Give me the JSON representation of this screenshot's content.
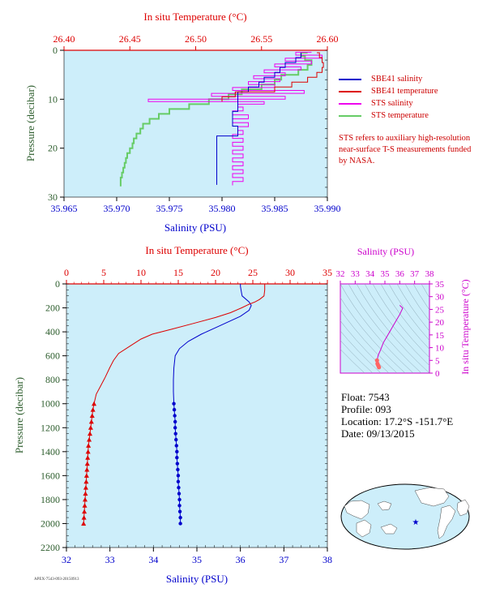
{
  "float_info": {
    "float": "Float:  7543",
    "profile": "Profile:  093",
    "location": "Location:  17.2°S  -151.7°E",
    "date": "Date:  09/13/2015"
  },
  "note": "STS refers to auxiliary high-resolution near-surface T-S measurements funded by NASA.",
  "footer_code": "APEX-7543-093-20150913",
  "colors": {
    "salinity": "#0000cc",
    "temperature": "#dd0000",
    "sts_salinity": "#ee00ee",
    "sts_temperature": "#66cc66",
    "plot_bg": "#cdeefa",
    "ts_axis": "#cc00cc",
    "pressure_axis": "#2e5e2e"
  },
  "chart_data": [
    {
      "type": "line",
      "title": "",
      "x_top_label": "In situ Temperature (°C)",
      "x_bottom_label": "Salinity (PSU)",
      "ylabel": "Pressure (decibar)",
      "top_ticks": [
        "26.40",
        "26.45",
        "26.50",
        "26.55",
        "26.60"
      ],
      "bottom_ticks": [
        "35.965",
        "35.970",
        "35.975",
        "35.980",
        "35.985",
        "35.990"
      ],
      "y_ticks": [
        "0",
        "10",
        "20",
        "30"
      ],
      "xlim_temperature": [
        26.4,
        26.6
      ],
      "xlim_salinity": [
        35.965,
        35.99
      ],
      "ylim": [
        30,
        0
      ],
      "legend": [
        {
          "name": "SBE41 salinity",
          "color": "#0000cc"
        },
        {
          "name": "SBE41 temperature",
          "color": "#dd0000"
        },
        {
          "name": "STS salinity",
          "color": "#ee00ee"
        },
        {
          "name": "STS temperature",
          "color": "#66cc66"
        }
      ],
      "series": [
        {
          "name": "SBE41 salinity",
          "axis": "salinity",
          "points": [
            [
              35.9875,
              0.5
            ],
            [
              35.9875,
              1.5
            ],
            [
              35.987,
              2.5
            ],
            [
              35.986,
              3.5
            ],
            [
              35.9855,
              4.5
            ],
            [
              35.985,
              5.5
            ],
            [
              35.984,
              6.5
            ],
            [
              35.9835,
              7.5
            ],
            [
              35.9825,
              8.5
            ],
            [
              35.9815,
              9.5
            ],
            [
              35.9815,
              10.5
            ],
            [
              35.9815,
              11.5
            ],
            [
              35.9815,
              12.5
            ],
            [
              35.981,
              14
            ],
            [
              35.981,
              15.5
            ],
            [
              35.9815,
              16.5
            ],
            [
              35.9815,
              17.5
            ],
            [
              35.9795,
              18.5
            ],
            [
              35.9795,
              19.5
            ],
            [
              35.9795,
              20.5
            ],
            [
              35.9795,
              21.5
            ],
            [
              35.9795,
              22.5
            ],
            [
              35.9795,
              23.5
            ],
            [
              35.9795,
              24.5
            ],
            [
              35.9795,
              25.5
            ],
            [
              35.9795,
              26.5
            ],
            [
              35.9795,
              27.5
            ]
          ]
        },
        {
          "name": "SBE41 temperature",
          "axis": "temperature",
          "points": [
            [
              26.592,
              0.5
            ],
            [
              26.594,
              1.5
            ],
            [
              26.596,
              2.5
            ],
            [
              26.597,
              3.5
            ],
            [
              26.596,
              4.5
            ],
            [
              26.592,
              5.5
            ],
            [
              26.585,
              6.5
            ],
            [
              26.573,
              7.5
            ],
            [
              26.56,
              8.5
            ],
            [
              26.53,
              9.5
            ],
            [
              26.52,
              10.5
            ]
          ]
        },
        {
          "name": "STS salinity",
          "axis": "salinity",
          "points": [
            [
              35.9885,
              0.4
            ],
            [
              35.987,
              1.0
            ],
            [
              35.9895,
              1.6
            ],
            [
              35.986,
              2.2
            ],
            [
              35.9885,
              2.8
            ],
            [
              35.985,
              3.4
            ],
            [
              35.9875,
              4.0
            ],
            [
              35.984,
              4.6
            ],
            [
              35.986,
              5.2
            ],
            [
              35.983,
              5.8
            ],
            [
              35.9855,
              6.4
            ],
            [
              35.9825,
              7.0
            ],
            [
              35.985,
              7.6
            ],
            [
              35.981,
              8.2
            ],
            [
              35.9878,
              8.8
            ],
            [
              35.979,
              9.4
            ],
            [
              35.986,
              10.0
            ],
            [
              35.973,
              10.5
            ],
            [
              35.984,
              11.0
            ],
            [
              35.9815,
              11.6
            ],
            [
              35.982,
              12.4
            ],
            [
              35.981,
              13.2
            ],
            [
              35.9825,
              14.0
            ],
            [
              35.981,
              14.8
            ],
            [
              35.9825,
              15.6
            ],
            [
              35.9815,
              16.4
            ],
            [
              35.982,
              17.2
            ],
            [
              35.981,
              18.0
            ],
            [
              35.982,
              18.8
            ],
            [
              35.981,
              19.6
            ],
            [
              35.982,
              20.4
            ],
            [
              35.981,
              21.2
            ],
            [
              35.982,
              22.0
            ],
            [
              35.981,
              22.8
            ],
            [
              35.982,
              23.6
            ],
            [
              35.981,
              24.4
            ],
            [
              35.982,
              25.2
            ],
            [
              35.981,
              26.0
            ],
            [
              35.982,
              26.8
            ],
            [
              35.981,
              27.6
            ]
          ]
        },
        {
          "name": "STS temperature",
          "axis": "temperature",
          "points": [
            [
              26.585,
              0.5
            ],
            [
              26.58,
              1.2
            ],
            [
              26.583,
              2.0
            ],
            [
              26.588,
              3.0
            ],
            [
              26.585,
              4.0
            ],
            [
              26.578,
              5.0
            ],
            [
              26.565,
              6.0
            ],
            [
              26.56,
              7.0
            ],
            [
              26.55,
              8.0
            ],
            [
              26.535,
              9.0
            ],
            [
              26.525,
              10.0
            ],
            [
              26.51,
              11.0
            ],
            [
              26.495,
              12.0
            ],
            [
              26.48,
              13.0
            ],
            [
              26.472,
              14.0
            ],
            [
              26.465,
              15.0
            ],
            [
              26.46,
              16.0
            ],
            [
              26.458,
              17.0
            ],
            [
              26.455,
              18.0
            ],
            [
              26.453,
              19.0
            ],
            [
              26.452,
              20.0
            ],
            [
              26.45,
              21.0
            ],
            [
              26.448,
              22.0
            ],
            [
              26.447,
              23.0
            ],
            [
              26.446,
              24.0
            ],
            [
              26.445,
              25.0
            ],
            [
              26.444,
              26.0
            ],
            [
              26.443,
              27.0
            ],
            [
              26.443,
              27.8
            ]
          ]
        }
      ]
    },
    {
      "type": "line",
      "title": "",
      "x_top_label": "In situ Temperature (°C)",
      "x_bottom_label": "Salinity (PSU)",
      "ylabel": "Pressure (decibar)",
      "top_ticks": [
        "0",
        "5",
        "10",
        "15",
        "20",
        "25",
        "30",
        "35"
      ],
      "bottom_ticks": [
        "32",
        "33",
        "34",
        "35",
        "36",
        "37",
        "38"
      ],
      "y_ticks": [
        "0",
        "200",
        "400",
        "600",
        "800",
        "1000",
        "1200",
        "1400",
        "1600",
        "1800",
        "2000",
        "2200"
      ],
      "xlim_temperature": [
        0,
        35
      ],
      "xlim_salinity": [
        32,
        38
      ],
      "ylim": [
        2200,
        0
      ],
      "series": [
        {
          "name": "Salinity",
          "axis": "salinity",
          "points": [
            [
              36.0,
              0
            ],
            [
              36.0,
              20
            ],
            [
              36.02,
              60
            ],
            [
              36.04,
              100
            ],
            [
              36.2,
              150
            ],
            [
              36.25,
              180
            ],
            [
              36.2,
              220
            ],
            [
              36.0,
              270
            ],
            [
              35.7,
              320
            ],
            [
              35.4,
              370
            ],
            [
              35.1,
              420
            ],
            [
              34.8,
              480
            ],
            [
              34.6,
              540
            ],
            [
              34.5,
              600
            ],
            [
              34.47,
              700
            ],
            [
              34.46,
              800
            ],
            [
              34.46,
              900
            ],
            [
              34.47,
              1000
            ]
          ]
        },
        {
          "name": "Temperature",
          "axis": "temperature",
          "points": [
            [
              26.6,
              0
            ],
            [
              26.6,
              50
            ],
            [
              26.5,
              100
            ],
            [
              25.9,
              130
            ],
            [
              25.3,
              150
            ],
            [
              24.5,
              170
            ],
            [
              23.5,
              200
            ],
            [
              22.0,
              240
            ],
            [
              20.0,
              280
            ],
            [
              17.0,
              330
            ],
            [
              14.0,
              380
            ],
            [
              11.5,
              420
            ],
            [
              10.0,
              460
            ],
            [
              8.5,
              520
            ],
            [
              7.0,
              580
            ],
            [
              6.3,
              640
            ],
            [
              5.8,
              700
            ],
            [
              5.2,
              780
            ],
            [
              4.6,
              850
            ],
            [
              4.0,
              920
            ],
            [
              3.7,
              1000
            ]
          ]
        },
        {
          "name": "Salinity (bottle)",
          "axis": "salinity",
          "points": [
            [
              34.47,
              1000
            ],
            [
              34.48,
              1050
            ],
            [
              34.49,
              1100
            ],
            [
              34.5,
              1150
            ],
            [
              34.5,
              1200
            ],
            [
              34.51,
              1250
            ],
            [
              34.52,
              1300
            ],
            [
              34.53,
              1350
            ],
            [
              34.54,
              1400
            ],
            [
              34.54,
              1450
            ],
            [
              34.55,
              1500
            ],
            [
              34.56,
              1550
            ],
            [
              34.57,
              1600
            ],
            [
              34.57,
              1650
            ],
            [
              34.58,
              1700
            ],
            [
              34.59,
              1750
            ],
            [
              34.6,
              1800
            ],
            [
              34.6,
              1850
            ],
            [
              34.61,
              1900
            ],
            [
              34.62,
              1950
            ],
            [
              34.62,
              2000
            ]
          ]
        },
        {
          "name": "Temperature (bottle)",
          "axis": "temperature",
          "points": [
            [
              3.7,
              1000
            ],
            [
              3.55,
              1050
            ],
            [
              3.45,
              1100
            ],
            [
              3.35,
              1150
            ],
            [
              3.25,
              1200
            ],
            [
              3.15,
              1250
            ],
            [
              3.05,
              1300
            ],
            [
              2.95,
              1350
            ],
            [
              2.9,
              1400
            ],
            [
              2.85,
              1450
            ],
            [
              2.8,
              1500
            ],
            [
              2.75,
              1550
            ],
            [
              2.7,
              1600
            ],
            [
              2.65,
              1650
            ],
            [
              2.6,
              1700
            ],
            [
              2.55,
              1750
            ],
            [
              2.5,
              1800
            ],
            [
              2.45,
              1850
            ],
            [
              2.4,
              1900
            ],
            [
              2.35,
              1950
            ],
            [
              2.3,
              2000
            ]
          ]
        }
      ]
    },
    {
      "type": "scatter",
      "title": "",
      "x_top_label": "Salinity (PSU)",
      "ylabel": "In situ Temperature (°C)",
      "top_ticks": [
        "32",
        "33",
        "34",
        "35",
        "36",
        "37",
        "38"
      ],
      "y_ticks": [
        "0",
        "5",
        "10",
        "15",
        "20",
        "25",
        "30",
        "35"
      ],
      "xlim": [
        32,
        38
      ],
      "ylim": [
        0,
        35
      ],
      "series": [
        {
          "name": "T-S curve",
          "points": [
            [
              36.0,
              26.6
            ],
            [
              36.2,
              25.5
            ],
            [
              36.0,
              23
            ],
            [
              35.6,
              19
            ],
            [
              35.2,
              15
            ],
            [
              34.9,
              12
            ],
            [
              34.7,
              9
            ],
            [
              34.55,
              7
            ],
            [
              34.47,
              5
            ],
            [
              34.5,
              3.7
            ],
            [
              34.55,
              3
            ],
            [
              34.6,
              2.3
            ]
          ]
        }
      ]
    }
  ]
}
